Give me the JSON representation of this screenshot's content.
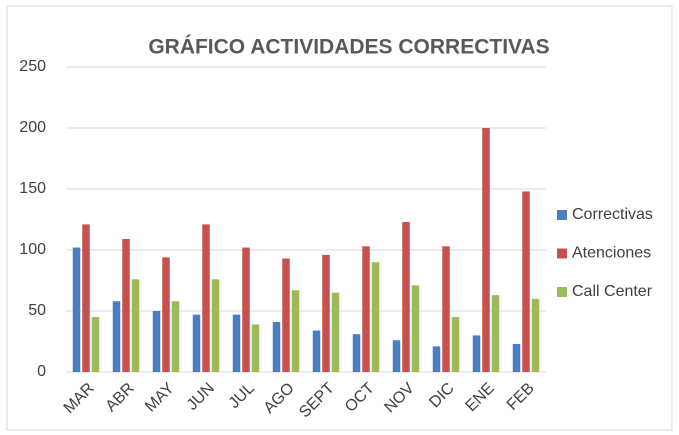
{
  "chart_data": {
    "type": "bar",
    "title": "GRÁFICO ACTIVIDADES CORRECTIVAS",
    "categories": [
      "MAR",
      "ABR",
      "MAY",
      "JUN",
      "JUL",
      "AGO",
      "SEPT",
      "OCT",
      "NOV",
      "DIC",
      "ENE",
      "FEB"
    ],
    "series": [
      {
        "name": "Correctivas",
        "color": "#4a7dc3",
        "values": [
          102,
          58,
          50,
          47,
          47,
          41,
          34,
          31,
          26,
          21,
          30,
          23
        ]
      },
      {
        "name": "Atenciones",
        "color": "#c5504d",
        "values": [
          121,
          109,
          94,
          121,
          102,
          93,
          96,
          103,
          123,
          103,
          200,
          148
        ]
      },
      {
        "name": "Call Center",
        "color": "#9bbb59",
        "values": [
          45,
          76,
          58,
          76,
          39,
          67,
          65,
          90,
          71,
          45,
          63,
          60
        ]
      }
    ],
    "ylim": [
      0,
      250
    ],
    "yticks": [
      0,
      50,
      100,
      150,
      200,
      250
    ],
    "grid": true,
    "legend": "right"
  }
}
